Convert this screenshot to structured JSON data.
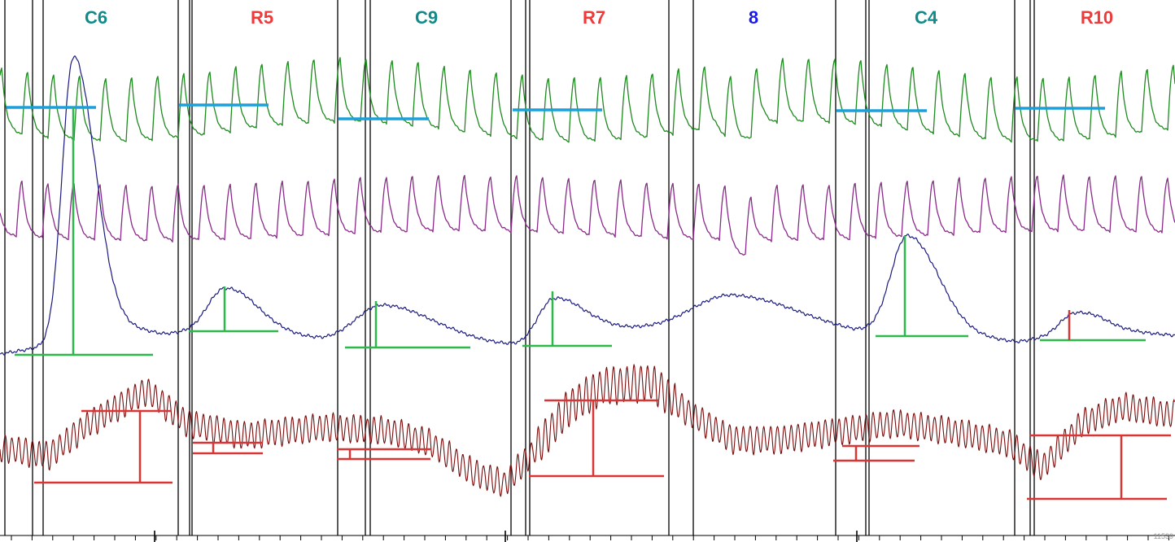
{
  "colors": {
    "background": "#ffffff",
    "event_line": "#000000",
    "baseline_marker": "#1aa1db",
    "amplitude_marker": "#2db84c",
    "range_marker": "#d93535",
    "label_control": "#138a8a",
    "label_response": "#f03a3a",
    "label_other": "#1a1aee"
  },
  "traces": [
    {
      "name": "green-trace",
      "color": "#1f8a1f"
    },
    {
      "name": "purple-trace",
      "color": "#8a2a8a"
    },
    {
      "name": "blue-trace",
      "color": "#1a1a80"
    },
    {
      "name": "maroon-trace",
      "color": "#7a0c0c"
    }
  ],
  "segments": [
    {
      "label": "C6",
      "kind": "control"
    },
    {
      "label": "R5",
      "kind": "response"
    },
    {
      "label": "C9",
      "kind": "control"
    },
    {
      "label": "R7",
      "kind": "response"
    },
    {
      "label": "8",
      "kind": "other"
    },
    {
      "label": "C4",
      "kind": "control"
    },
    {
      "label": "R10",
      "kind": "response"
    }
  ],
  "footer": {
    "corner_text": "11539"
  }
}
